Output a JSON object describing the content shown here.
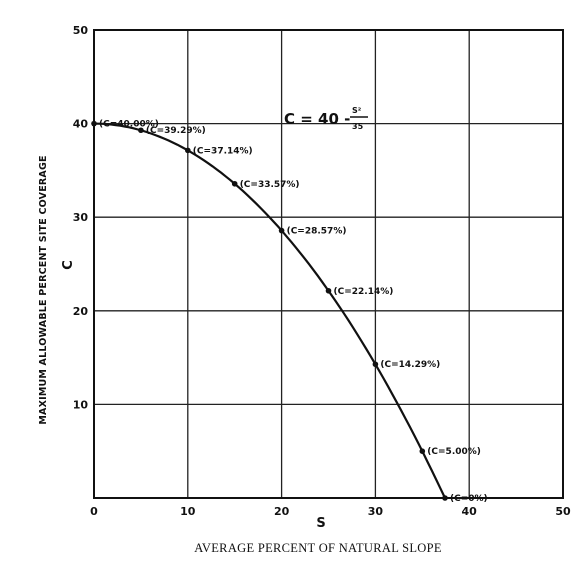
{
  "chart_data": {
    "type": "line",
    "title": "",
    "formula": {
      "lhs": "C = 40 -",
      "numerator": "S²",
      "denominator": "35"
    },
    "xlabel": "AVERAGE PERCENT OF NATURAL SLOPE",
    "x_variable": "S",
    "ylabel": "MAXIMUM ALLOWABLE PERCENT SITE COVERAGE",
    "y_variable": "C",
    "xlim": [
      0,
      50
    ],
    "ylim": [
      0,
      50
    ],
    "xticks": [
      "0",
      "10",
      "20",
      "30",
      "40",
      "50"
    ],
    "yticks": [
      "10",
      "20",
      "30",
      "40",
      "50"
    ],
    "grid": true,
    "curve_formula": "C = 40 - S^2/35",
    "points": [
      {
        "x": 0,
        "y": 40.0,
        "label": "(C=40.00%)"
      },
      {
        "x": 5,
        "y": 39.29,
        "label": "(C=39.29%)"
      },
      {
        "x": 10,
        "y": 37.14,
        "label": "(C=37.14%)"
      },
      {
        "x": 15,
        "y": 33.57,
        "label": "(C=33.57%)"
      },
      {
        "x": 20,
        "y": 28.57,
        "label": "(C=28.57%)"
      },
      {
        "x": 25,
        "y": 22.14,
        "label": "(C=22.14%)"
      },
      {
        "x": 30,
        "y": 14.29,
        "label": "(C=14.29%)"
      },
      {
        "x": 35,
        "y": 5.0,
        "label": "(C=5.00%)"
      },
      {
        "x": 37.42,
        "y": 0,
        "label": "(C=0%)"
      }
    ]
  }
}
